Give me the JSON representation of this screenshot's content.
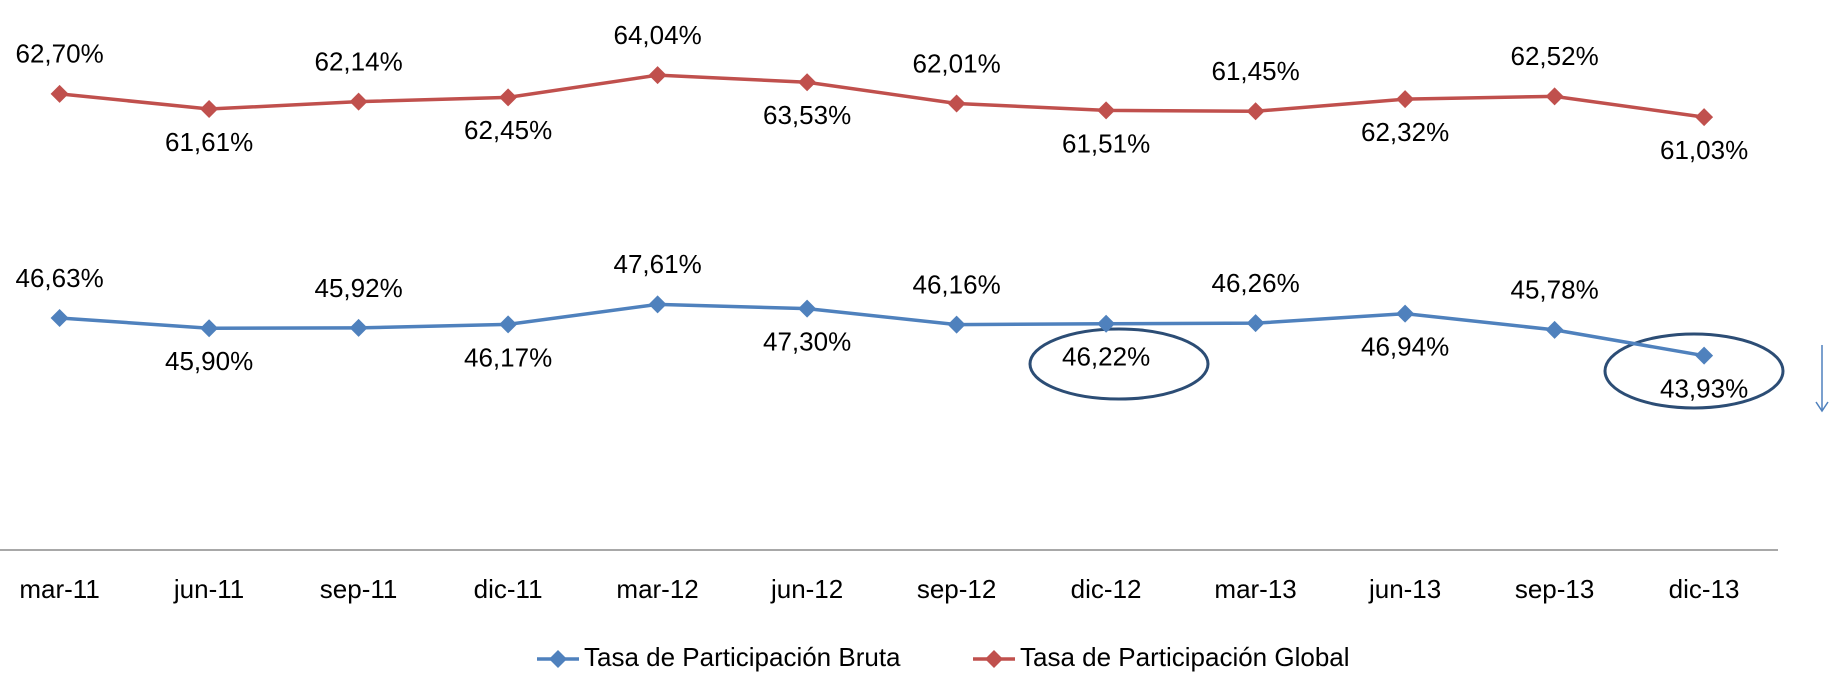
{
  "chart_data": {
    "type": "line",
    "categories": [
      "mar-11",
      "jun-11",
      "sep-11",
      "dic-11",
      "mar-12",
      "jun-12",
      "sep-12",
      "dic-12",
      "mar-13",
      "jun-13",
      "sep-13",
      "dic-13"
    ],
    "series": [
      {
        "name": "Tasa de Participación Bruta",
        "color": "#4f81bd",
        "values": [
          46.63,
          45.9,
          45.92,
          46.17,
          47.61,
          47.3,
          46.16,
          46.22,
          46.26,
          46.94,
          45.78,
          43.93
        ],
        "value_labels": [
          "46,63%",
          "45,90%",
          "45,92%",
          "46,17%",
          "47,61%",
          "47,30%",
          "46,16%",
          "46,22%",
          "46,26%",
          "46,94%",
          "45,78%",
          "43,93%"
        ]
      },
      {
        "name": "Tasa de Participación Global",
        "color": "#c0504d",
        "values": [
          62.7,
          61.61,
          62.14,
          62.45,
          64.04,
          63.53,
          62.01,
          61.51,
          61.45,
          62.32,
          62.52,
          61.03
        ],
        "value_labels": [
          "62,70%",
          "61,61%",
          "62,14%",
          "62,45%",
          "64,04%",
          "63,53%",
          "62,01%",
          "61,51%",
          "61,45%",
          "62,32%",
          "62,52%",
          "61,03%"
        ]
      }
    ],
    "ylim": [
      30,
      70
    ],
    "legend": "bottom"
  }
}
